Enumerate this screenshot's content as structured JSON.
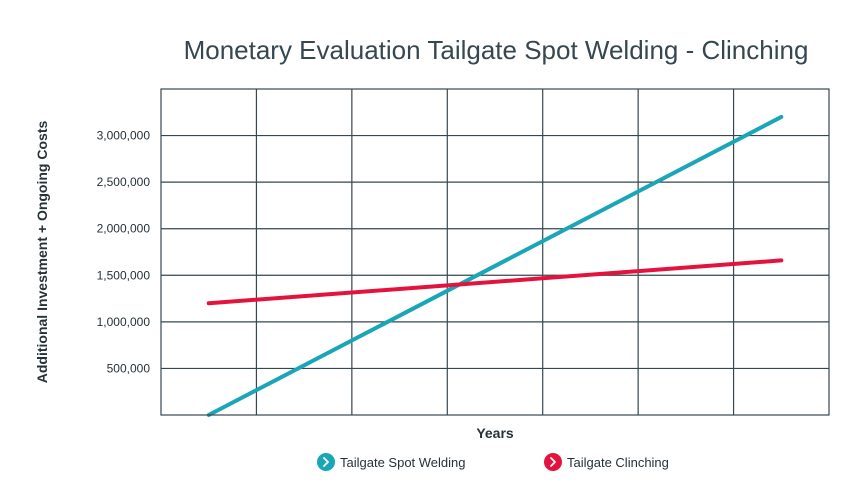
{
  "chart_data": {
    "type": "line",
    "title": "Monetary Evaluation Tailgate Spot Welding - Clinching",
    "xlabel": "Years",
    "ylabel": "Additional Investment + Ongoing Costs",
    "x": [
      0,
      6
    ],
    "xlim": [
      -0.5,
      6.5
    ],
    "ylim": [
      0,
      3500000
    ],
    "yticks": [
      500000,
      1000000,
      1500000,
      2000000,
      2500000,
      3000000
    ],
    "ytick_labels": [
      "500,000",
      "1,000,000",
      "1,500,000",
      "2,000,000",
      "2,500,000",
      "3,000,000"
    ],
    "xgrid": [
      0.5,
      1.5,
      2.5,
      3.5,
      4.5,
      5.5
    ],
    "grid": true,
    "legend_position": "bottom-center",
    "series": [
      {
        "name": "Tailgate Spot Welding",
        "values": [
          0,
          3200000
        ],
        "color": "#1aa6b7"
      },
      {
        "name": "Tailgate Clinching",
        "values": [
          1200000,
          1660000
        ],
        "color": "#e3133d"
      }
    ]
  }
}
